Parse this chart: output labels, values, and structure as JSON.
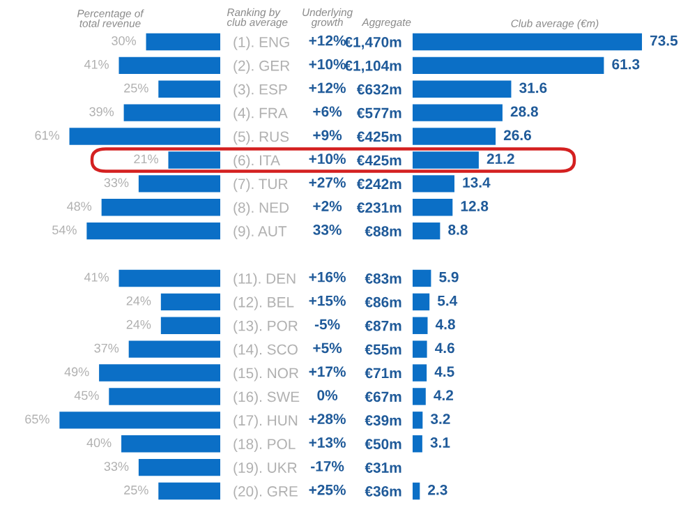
{
  "chart_data": [
    {
      "type": "bar",
      "orientation": "horizontal",
      "title": "Percentage of total revenue",
      "ylabel": "Ranking by club average",
      "color": "#0b6fc6",
      "categories": [
        "(1). ENG",
        "(2). GER",
        "(3). ESP",
        "(4). FRA",
        "(5). RUS",
        "(6). ITA",
        "(7). TUR",
        "(8). NED",
        "(9). AUT",
        null,
        "(11). DEN",
        "(12). BEL",
        "(13). POR",
        "(14). SCO",
        "(15). NOR",
        "(16). SWE",
        "(17). HUN",
        "(18). POL",
        "(19). UKR",
        "(20). GRE"
      ],
      "values": [
        30,
        41,
        25,
        39,
        61,
        21,
        33,
        48,
        54,
        null,
        41,
        24,
        24,
        37,
        49,
        45,
        65,
        40,
        33,
        25
      ],
      "value_labels": [
        "30%",
        "41%",
        "25%",
        "39%",
        "61%",
        "21%",
        "33%",
        "48%",
        "54%",
        null,
        "41%",
        "24%",
        "24%",
        "37%",
        "49%",
        "45%",
        "65%",
        "40%",
        "33%",
        "25%"
      ],
      "tick_labels": "y"
    },
    {
      "type": "bar",
      "orientation": "horizontal",
      "title": "Club average (€m)",
      "ylabel": "Aggregate",
      "color": "#0b6fc6",
      "categories": [
        "€1,470m",
        "€1,104m",
        "€632m",
        "€577m",
        "€425m",
        "€425m",
        "€242m",
        "€231m",
        "€88m",
        null,
        "€83m",
        "€86m",
        "€87m",
        "€55m",
        "€71m",
        "€67m",
        "€39m",
        "€50m",
        "€31m",
        "€36m"
      ],
      "values": [
        73.5,
        61.3,
        31.6,
        28.8,
        26.6,
        21.2,
        13.4,
        12.8,
        8.8,
        null,
        5.9,
        5.4,
        4.8,
        4.6,
        4.5,
        4.2,
        3.2,
        3.1,
        null,
        2.3
      ],
      "data_labels": true,
      "tick_labels": "y",
      "annotations": [
        "Underlying growth",
        "+12%",
        "+10%",
        "+12%",
        "+6%",
        "+9%",
        "+10%",
        "+27%",
        "+2%",
        "33%",
        "+16%",
        "+15%",
        "-5%",
        "+5%",
        "+17%",
        "0%",
        "+28%",
        "+13%",
        "-17%",
        "+25%"
      ]
    }
  ]
}
